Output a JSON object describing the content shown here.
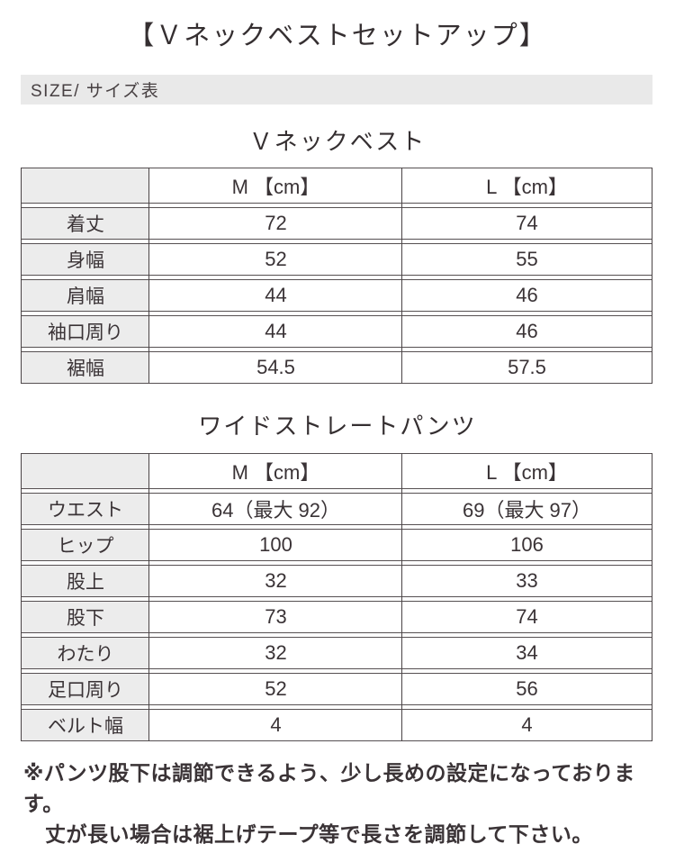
{
  "page": {
    "title": "【Ｖネックベストセットアップ】",
    "size_bar_label": "SIZE/ サイズ表"
  },
  "vest": {
    "heading": "Ｖネックベスト",
    "columns": [
      "",
      "M 【cm】",
      "L 【cm】"
    ],
    "rows": [
      {
        "label": "着丈",
        "m": "72",
        "l": "74"
      },
      {
        "label": "身幅",
        "m": "52",
        "l": "55"
      },
      {
        "label": "肩幅",
        "m": "44",
        "l": "46"
      },
      {
        "label": "袖口周り",
        "m": "44",
        "l": "46"
      },
      {
        "label": "裾幅",
        "m": "54.5",
        "l": "57.5"
      }
    ]
  },
  "pants": {
    "heading": "ワイドストレートパンツ",
    "columns": [
      "",
      "M 【cm】",
      "L 【cm】"
    ],
    "rows": [
      {
        "label": "ウエスト",
        "m": "64（最大 92）",
        "l": "69（最大 97）"
      },
      {
        "label": "ヒップ",
        "m": "100",
        "l": "106"
      },
      {
        "label": "股上",
        "m": "32",
        "l": "33"
      },
      {
        "label": "股下",
        "m": "73",
        "l": "74"
      },
      {
        "label": "わたり",
        "m": "32",
        "l": "34"
      },
      {
        "label": "足口周り",
        "m": "52",
        "l": "56"
      },
      {
        "label": "ベルト幅",
        "m": "4",
        "l": "4"
      }
    ]
  },
  "note": {
    "line1": "※パンツ股下は調節できるよう、少し長めの設定になっております。",
    "line2": "丈が長い場合は裾上げテープ等で長さを調節して下さい。"
  },
  "colors": {
    "text": "#3a3336",
    "border": "#4b4446",
    "label_cell_bg": "#ececec",
    "size_bar_bg": "#e9e9e9"
  }
}
